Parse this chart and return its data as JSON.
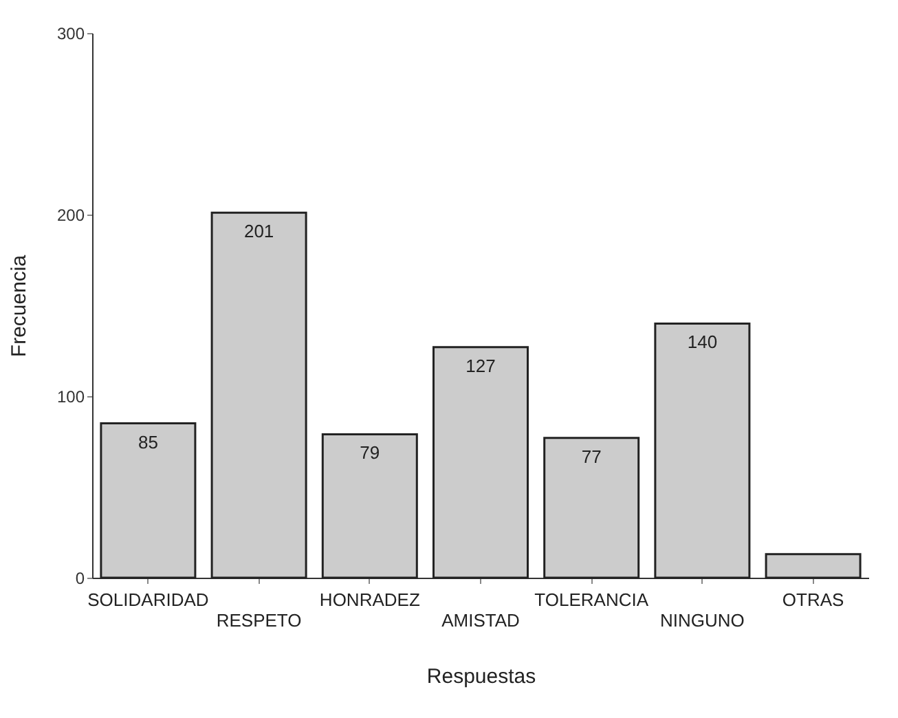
{
  "chart_data": {
    "type": "bar",
    "xlabel": "Respuestas",
    "ylabel": "Frecuencia",
    "categories": [
      "SOLIDARIDAD",
      "RESPETO",
      "HONRADEZ",
      "AMISTAD",
      "TOLERANCIA",
      "NINGUNO",
      "OTRAS"
    ],
    "values": [
      85,
      201,
      79,
      127,
      77,
      140,
      13
    ],
    "value_labels": [
      "85",
      "201",
      "79",
      "127",
      "77",
      "140",
      null
    ],
    "color": "#cccccc",
    "ylim": [
      0,
      300
    ],
    "yticks": [
      0,
      100,
      200,
      300
    ],
    "grid": false
  }
}
